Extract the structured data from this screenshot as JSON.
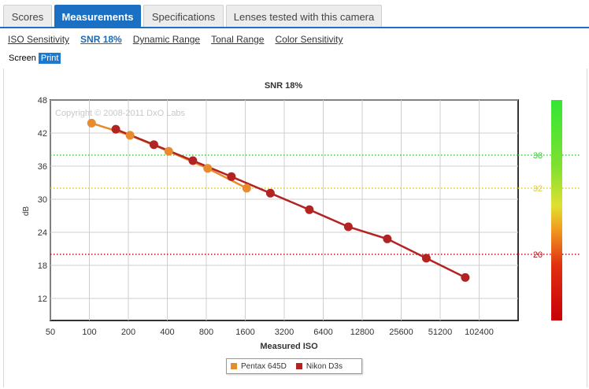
{
  "tabs": [
    {
      "label": "Scores",
      "active": false
    },
    {
      "label": "Measurements",
      "active": true
    },
    {
      "label": "Specifications",
      "active": false
    },
    {
      "label": "Lenses tested with this camera",
      "active": false
    }
  ],
  "subtabs": [
    {
      "label": "ISO Sensitivity",
      "active": false
    },
    {
      "label": "SNR 18%",
      "active": true
    },
    {
      "label": "Dynamic Range",
      "active": false
    },
    {
      "label": "Tonal Range",
      "active": false
    },
    {
      "label": "Color Sensitivity",
      "active": false
    }
  ],
  "view_toggle": {
    "screen": "Screen",
    "print": "Print"
  },
  "chart_data": {
    "type": "line",
    "title": "SNR 18%",
    "xlabel": "Measured ISO",
    "ylabel": "dB",
    "x_scale": "log2",
    "x_ticks": [
      "50",
      "100",
      "200",
      "400",
      "800",
      "1600",
      "3200",
      "6400",
      "12800",
      "25600",
      "51200",
      "102400"
    ],
    "y_ticks": [
      "12",
      "18",
      "24",
      "30",
      "36",
      "42",
      "48"
    ],
    "xlim": [
      50,
      204800
    ],
    "ylim": [
      8,
      48
    ],
    "grid": true,
    "copyright": "Copyright © 2008-2011 DxO Labs",
    "reference_lines": [
      {
        "value": 38,
        "label": "38",
        "color": "#3ecb3e",
        "style": "dotted"
      },
      {
        "value": 32,
        "label": "32",
        "color": "#d6cc3a",
        "style": "dotted"
      },
      {
        "value": 20,
        "label": "20",
        "color": "#c0101c",
        "style": "dotted"
      }
    ],
    "series": [
      {
        "name": "Pentax 645D",
        "color": "#e88a2e",
        "x": [
          104,
          206,
          410,
          820,
          1640
        ],
        "y": [
          43.8,
          41.6,
          38.7,
          35.6,
          32.0
        ]
      },
      {
        "name": "Nikon D3s",
        "color": "#b32322",
        "x": [
          160,
          315,
          630,
          1250,
          2500,
          5000,
          10000,
          20000,
          40000,
          80000
        ],
        "y": [
          42.7,
          39.9,
          37.0,
          34.1,
          31.1,
          28.1,
          25.0,
          22.8,
          19.3,
          15.8
        ]
      }
    ],
    "legend_position": "bottom"
  }
}
